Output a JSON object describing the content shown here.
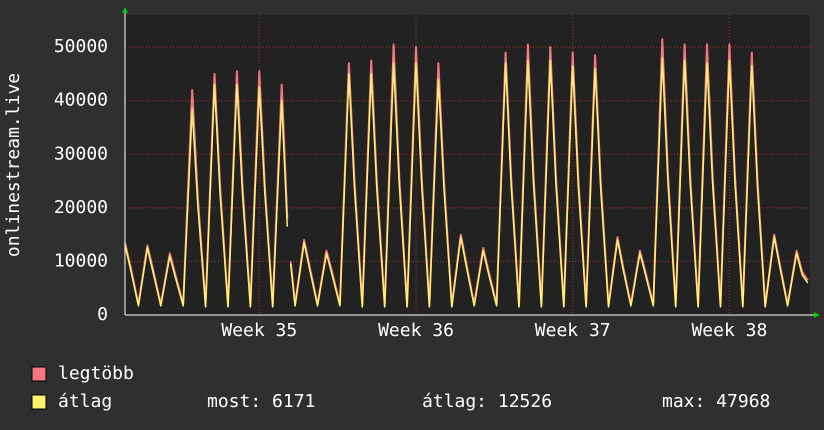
{
  "chart_data": {
    "type": "line",
    "y_label": "onlinestream.live",
    "x": [
      0,
      0.25,
      0.6,
      1,
      1.25,
      1.6,
      2,
      2.25,
      2.6,
      3,
      3.25,
      3.6,
      4,
      4.25,
      4.6,
      5,
      5.25,
      5.6,
      6,
      6.25,
      6.6,
      7,
      7.25,
      7.3,
      7.4,
      7.6,
      8,
      8.25,
      8.6,
      9,
      9.25,
      9.6,
      10,
      10.25,
      10.6,
      11,
      11.25,
      11.6,
      12,
      12.25,
      12.6,
      13,
      13.25,
      13.6,
      14,
      14.25,
      14.6,
      15,
      15.25,
      15.6,
      16,
      16.25,
      16.6,
      17,
      17.25,
      17.6,
      18,
      18.25,
      18.6,
      19,
      19.25,
      19.6,
      20,
      20.25,
      20.6,
      21,
      21.25,
      21.6,
      22,
      22.25,
      22.6,
      23,
      23.25,
      23.6,
      24,
      24.25,
      24.6,
      25,
      25.25,
      25.6,
      26,
      26.25,
      26.6,
      27,
      27.25,
      27.6,
      28,
      28.25,
      28.6,
      29,
      29.25,
      29.6,
      30,
      30.25,
      30.5
    ],
    "series": [
      {
        "name": "legtöbb",
        "color": "#f4777f",
        "values": [
          13500,
          9000,
          2000,
          13000,
          8500,
          2000,
          11500,
          7500,
          2000,
          42000,
          22000,
          1800,
          45000,
          24000,
          1800,
          45500,
          24000,
          1800,
          45500,
          24000,
          1800,
          43000,
          18000,
          null,
          10000,
          2000,
          14000,
          9000,
          2000,
          12000,
          8000,
          2000,
          47000,
          25000,
          1800,
          47500,
          25000,
          1800,
          50500,
          26000,
          1800,
          50000,
          26000,
          1800,
          47000,
          25000,
          1800,
          15000,
          9500,
          2000,
          12500,
          8000,
          2000,
          49000,
          25500,
          1800,
          50500,
          26000,
          1800,
          50000,
          26000,
          1800,
          49000,
          25500,
          1800,
          48500,
          25000,
          1800,
          14500,
          9000,
          2000,
          12000,
          8000,
          2000,
          51500,
          26500,
          1800,
          50500,
          26000,
          1800,
          50500,
          26000,
          1800,
          50500,
          26000,
          1800,
          49000,
          25500,
          1800,
          15000,
          9500,
          2000,
          12000,
          8000,
          6500
        ]
      },
      {
        "name": "átlag",
        "color": "#fff36e",
        "values": [
          13000,
          8500,
          1700,
          12500,
          8000,
          1700,
          11000,
          7000,
          1700,
          38500,
          20500,
          1500,
          43000,
          22500,
          1500,
          43000,
          22500,
          1500,
          42500,
          22500,
          1500,
          40000,
          16500,
          null,
          9500,
          1700,
          13500,
          8500,
          1700,
          11500,
          7500,
          1700,
          45000,
          23500,
          1500,
          45000,
          23500,
          1500,
          47000,
          24500,
          1500,
          47000,
          24500,
          1500,
          44000,
          23500,
          1500,
          14500,
          9000,
          1700,
          12000,
          7500,
          1700,
          47000,
          24000,
          1500,
          47500,
          24500,
          1500,
          47500,
          24500,
          1500,
          46500,
          24000,
          1500,
          46000,
          23500,
          1500,
          14000,
          8500,
          1700,
          11500,
          7500,
          1700,
          48000,
          25000,
          1500,
          47500,
          24500,
          1500,
          47000,
          24500,
          1500,
          47500,
          24500,
          1500,
          46500,
          24000,
          1500,
          14500,
          9000,
          1700,
          11500,
          7500,
          6000
        ]
      }
    ],
    "xlim": [
      0,
      30.6
    ],
    "xticks": [
      {
        "value": 6,
        "label": "Week 35"
      },
      {
        "value": 13,
        "label": "Week 36"
      },
      {
        "value": 20,
        "label": "Week 37"
      },
      {
        "value": 27,
        "label": "Week 38"
      }
    ],
    "ylim": [
      0,
      56000
    ],
    "yticks": [
      0,
      10000,
      20000,
      30000,
      40000,
      50000
    ],
    "grid": true,
    "stats": [
      "most: 6171",
      "átlag: 12526",
      "max: 47968"
    ]
  }
}
